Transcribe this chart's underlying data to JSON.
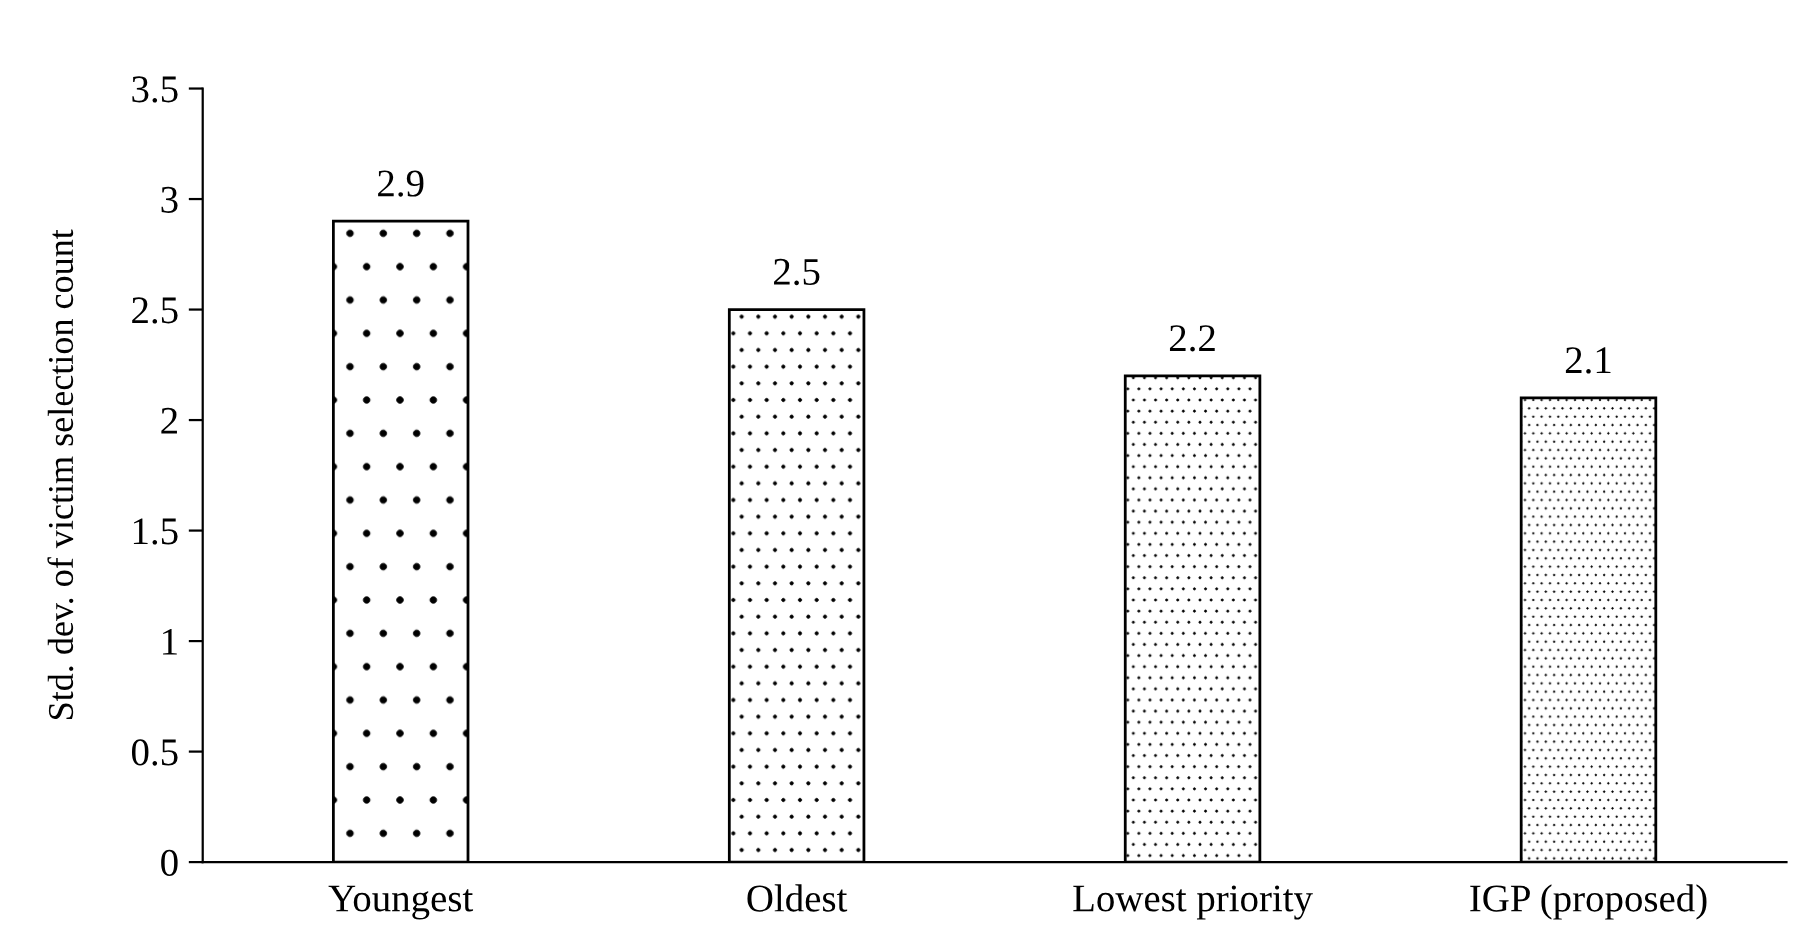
{
  "chart_data": {
    "type": "bar",
    "ylabel": "Std. dev. of victim selection count",
    "categories": [
      "Youngest",
      "Oldest",
      "Lowest priority",
      "IGP (proposed)"
    ],
    "values": [
      2.9,
      2.5,
      2.2,
      2.1
    ],
    "ylim": [
      0,
      3.5
    ],
    "yticks": [
      0,
      0.5,
      1,
      1.5,
      2,
      2.5,
      3,
      3.5
    ],
    "data_labels": true,
    "grid": false,
    "legend": false
  }
}
